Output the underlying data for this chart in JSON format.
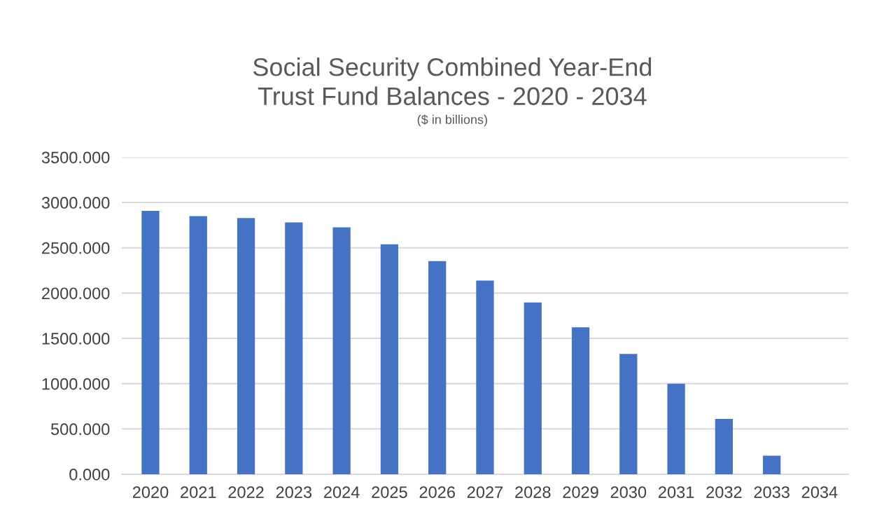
{
  "chart_data": {
    "type": "bar",
    "title": "Social Security Combined Year-End\nTrust Fund Balances - 2020 - 2034",
    "subtitle": "($ in billions)",
    "categories": [
      "2020",
      "2021",
      "2022",
      "2023",
      "2024",
      "2025",
      "2026",
      "2027",
      "2028",
      "2029",
      "2030",
      "2031",
      "2032",
      "2033",
      "2034"
    ],
    "values": [
      2908,
      2849,
      2828,
      2780,
      2725,
      2538,
      2352,
      2138,
      1897,
      1621,
      1327,
      1000,
      610,
      205,
      0
    ],
    "color": "#4472c4",
    "ylim": [
      0,
      3500
    ],
    "yticks": [
      {
        "value": 0,
        "label": "0.000"
      },
      {
        "value": 500,
        "label": "500.000"
      },
      {
        "value": 1000,
        "label": "1000.000"
      },
      {
        "value": 1500,
        "label": "1500.000"
      },
      {
        "value": 2000,
        "label": "2000.000"
      },
      {
        "value": 2500,
        "label": "2500.000"
      },
      {
        "value": 3000,
        "label": "3000.000"
      },
      {
        "value": 3500,
        "label": "3500.000"
      }
    ],
    "grid": "y"
  }
}
